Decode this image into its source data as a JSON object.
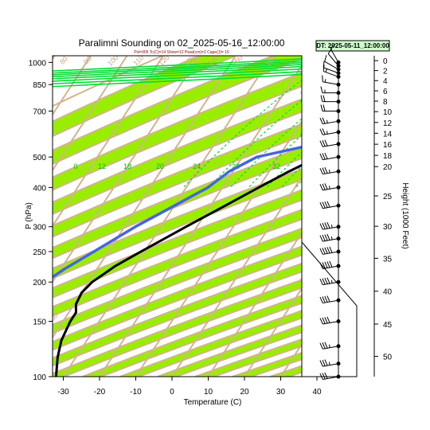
{
  "header": {
    "title": "Paralimni Sounding on 02_2025-05-16_12:00:00",
    "subtitle": "Psl=905 Tc(C)=14 Show=12 Pwat(cm)=2 Cape(J)= 15",
    "dt_label": "DT: 2025-05-11_12:00:00"
  },
  "chart_data": {
    "type": "line",
    "subtype": "skew-T log-P sounding",
    "title": "Paralimni Sounding on 02_2025-05-16_12:00:00",
    "xlabel": "Temperature (C)",
    "ylabel": "P (hPa)",
    "y2label": "Height (1000 Feet)",
    "xlim": [
      -33,
      52
    ],
    "ylim": [
      1050,
      100
    ],
    "y_scale": "log",
    "x_ticks": [
      -30,
      -20,
      -10,
      0,
      10,
      20,
      30,
      40
    ],
    "x_tick_labels": [
      "-30",
      "-20",
      "-10",
      "0",
      "10",
      "20",
      "30",
      "40"
    ],
    "p_ticks": [
      100,
      150,
      200,
      250,
      300,
      400,
      500,
      700,
      850,
      1000
    ],
    "p_tick_labels": [
      "100",
      "150",
      "200",
      "250",
      "300",
      "400",
      "500",
      "700",
      "850",
      "1000"
    ],
    "height_ticks_kft": [
      0,
      2,
      4,
      6,
      8,
      10,
      12,
      14,
      16,
      18,
      20,
      25,
      30,
      35,
      40,
      45,
      50
    ],
    "height_tick_labels": [
      "0",
      "2",
      "4",
      "6",
      "8",
      "10",
      "12",
      "14",
      "16",
      "18",
      "20",
      "25",
      "30",
      "35",
      "40",
      "45",
      "50"
    ],
    "height_tick_pressures": [
      1013,
      942,
      875,
      812,
      753,
      697,
      644,
      595,
      549,
      506,
      466,
      376,
      301,
      238,
      187,
      147,
      116
    ],
    "series": [
      {
        "name": "",
        "role": "temperature",
        "color": "#000000",
        "points": [
          [
            1000,
            23.5
          ],
          [
            990,
            22
          ],
          [
            970,
            21.5
          ],
          [
            950,
            22.8
          ],
          [
            925,
            22
          ],
          [
            900,
            21.8
          ],
          [
            850,
            22
          ],
          [
            800,
            22
          ],
          [
            750,
            21.5
          ],
          [
            700,
            19.5
          ],
          [
            650,
            16
          ],
          [
            600,
            12
          ],
          [
            550,
            7
          ],
          [
            500,
            1
          ],
          [
            450,
            -4.5
          ],
          [
            400,
            -10
          ],
          [
            350,
            -16
          ],
          [
            300,
            -23
          ],
          [
            250,
            -31
          ],
          [
            225,
            -35.5
          ],
          [
            200,
            -39
          ],
          [
            185,
            -40
          ],
          [
            170,
            -39.5
          ],
          [
            160,
            -38
          ],
          [
            150,
            -38
          ],
          [
            130,
            -37
          ],
          [
            115,
            -35
          ],
          [
            100,
            -32
          ]
        ]
      },
      {
        "name": "",
        "role": "dewpoint",
        "color": "#4466dd",
        "points": [
          [
            1000,
            17
          ],
          [
            980,
            16.5
          ],
          [
            960,
            8
          ],
          [
            930,
            -2
          ],
          [
            900,
            5
          ],
          [
            870,
            5
          ],
          [
            850,
            -4
          ],
          [
            830,
            -6
          ],
          [
            800,
            -2
          ],
          [
            750,
            4
          ],
          [
            700,
            6
          ],
          [
            650,
            6
          ],
          [
            600,
            6
          ],
          [
            570,
            4
          ],
          [
            550,
            -2
          ],
          [
            500,
            -16
          ],
          [
            450,
            -21
          ],
          [
            400,
            -24
          ],
          [
            350,
            -30
          ],
          [
            300,
            -37
          ],
          [
            250,
            -44
          ],
          [
            220,
            -49
          ],
          [
            200,
            -52
          ],
          [
            170,
            -54
          ],
          [
            155,
            -58
          ],
          [
            130,
            -58
          ],
          [
            115,
            -57
          ],
          [
            100,
            -54
          ]
        ]
      }
    ],
    "isotherm_labels": [
      "0",
      "12",
      "18",
      "20",
      "24",
      "28",
      "32"
    ],
    "adiabat_labels": [
      "80",
      "90",
      "100",
      "110",
      "120",
      "130",
      "140",
      "150",
      "160",
      "30",
      "20",
      "10",
      "0",
      "10",
      "20",
      "30",
      "30"
    ],
    "legend": "none",
    "grid": true,
    "colors": {
      "band_fill": "#99ee00",
      "dry_adiabat": "#d2b48c",
      "moist_adiabat": "#00dd33",
      "mixing_ratio": "#00dd33",
      "temperature": "#000000",
      "dewpoint": "#4466dd",
      "wind_barb": "#000000"
    },
    "wind_barbs": [
      {
        "p": 1000,
        "spd_kt": 10,
        "dir": 330
      },
      {
        "p": 975,
        "spd_kt": 10,
        "dir": 320
      },
      {
        "p": 950,
        "spd_kt": 10,
        "dir": 300
      },
      {
        "p": 925,
        "spd_kt": 10,
        "dir": 290
      },
      {
        "p": 900,
        "spd_kt": 15,
        "dir": 290
      },
      {
        "p": 850,
        "spd_kt": 15,
        "dir": 280
      },
      {
        "p": 800,
        "spd_kt": 15,
        "dir": 270
      },
      {
        "p": 750,
        "spd_kt": 20,
        "dir": 270
      },
      {
        "p": 700,
        "spd_kt": 20,
        "dir": 270
      },
      {
        "p": 650,
        "spd_kt": 25,
        "dir": 260
      },
      {
        "p": 600,
        "spd_kt": 25,
        "dir": 260
      },
      {
        "p": 550,
        "spd_kt": 30,
        "dir": 260
      },
      {
        "p": 500,
        "spd_kt": 30,
        "dir": 260
      },
      {
        "p": 450,
        "spd_kt": 35,
        "dir": 260
      },
      {
        "p": 400,
        "spd_kt": 35,
        "dir": 260
      },
      {
        "p": 350,
        "spd_kt": 40,
        "dir": 260
      },
      {
        "p": 300,
        "spd_kt": 45,
        "dir": 260
      },
      {
        "p": 275,
        "spd_kt": 45,
        "dir": 260
      },
      {
        "p": 250,
        "spd_kt": 50,
        "dir": 260
      },
      {
        "p": 225,
        "spd_kt": 50,
        "dir": 260
      },
      {
        "p": 200,
        "spd_kt": 45,
        "dir": 260
      },
      {
        "p": 175,
        "spd_kt": 40,
        "dir": 260
      },
      {
        "p": 150,
        "spd_kt": 40,
        "dir": 260
      },
      {
        "p": 125,
        "spd_kt": 35,
        "dir": 260
      },
      {
        "p": 110,
        "spd_kt": 35,
        "dir": 260
      },
      {
        "p": 100,
        "spd_kt": 30,
        "dir": 260
      }
    ]
  }
}
